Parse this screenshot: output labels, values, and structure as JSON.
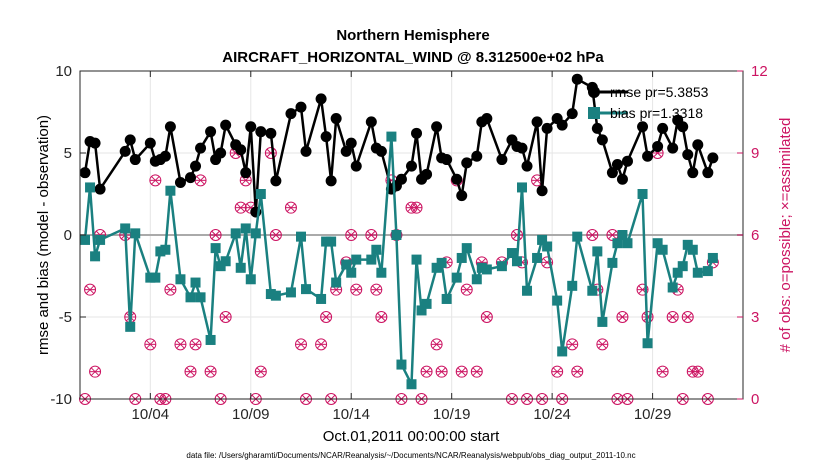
{
  "chart_data": {
    "type": "line",
    "title": "Northern Hemisphere",
    "subtitle": "AIRCRAFT_HORIZONTAL_WIND @ 8.312500e+02 hPa",
    "xlabel": "Oct.01,2011 00:00:00 start",
    "ylabel": "rmse and bias (model - observation)",
    "y2label": "# of obs: o=possible; ×=assimilated",
    "footnote": "data file: /Users/gharamti/Documents/NCAR/Reanalysis/~/Documents/NCAR/Reanalysis/webpub/obs_diag_output_2011-10.nc",
    "xlim": [
      0.5,
      33.5
    ],
    "ylim": [
      -10,
      10
    ],
    "y2lim": [
      0,
      12
    ],
    "grid": true,
    "x_ticks": [
      {
        "x": 4,
        "label": "10/04"
      },
      {
        "x": 9,
        "label": "10/09"
      },
      {
        "x": 14,
        "label": "10/14"
      },
      {
        "x": 19,
        "label": "10/19"
      },
      {
        "x": 24,
        "label": "10/24"
      },
      {
        "x": 29,
        "label": "10/29"
      }
    ],
    "y_ticks": [
      -10,
      -5,
      0,
      5,
      10
    ],
    "y2_ticks": [
      0,
      3,
      6,
      9,
      12
    ],
    "legend": {
      "position": "top-right"
    },
    "colors": {
      "rmse": "#000000",
      "bias": "#1a8080",
      "obs": "#cc1462",
      "zero": "#aaaaaa",
      "grid": "#e6e6e6"
    },
    "series": [
      {
        "name": "rmse",
        "legend_label": "rmse pr=5.3853",
        "marker": "circle",
        "x": [
          0.75,
          1.0,
          1.25,
          1.5,
          2.75,
          3.0,
          3.25,
          4.0,
          4.25,
          4.5,
          4.75,
          5.0,
          5.5,
          6.0,
          6.25,
          6.5,
          7.0,
          7.25,
          7.5,
          7.75,
          8.25,
          8.5,
          8.75,
          9.0,
          9.25,
          9.5,
          10.0,
          10.25,
          11.0,
          11.5,
          11.75,
          12.5,
          12.75,
          13.0,
          13.25,
          13.75,
          14.0,
          14.25,
          15.0,
          15.25,
          15.5,
          16.0,
          16.25,
          16.5,
          17.0,
          17.25,
          17.5,
          17.75,
          18.25,
          18.5,
          18.75,
          19.25,
          19.5,
          19.75,
          20.25,
          20.5,
          20.75,
          21.5,
          22.0,
          22.25,
          22.5,
          22.75,
          23.25,
          23.5,
          23.75,
          24.25,
          24.5,
          25.0,
          25.25,
          26.0,
          26.25,
          26.5,
          27.0,
          27.25,
          27.5,
          27.75,
          28.5,
          28.75,
          29.25,
          29.5,
          30.0,
          30.25,
          30.5,
          30.75,
          31.0,
          31.25,
          31.75,
          32.0
        ],
        "values": [
          3.8,
          5.7,
          5.6,
          2.8,
          5.1,
          5.8,
          4.6,
          5.6,
          4.5,
          4.6,
          4.8,
          6.6,
          3.2,
          3.5,
          4.2,
          5.3,
          6.3,
          4.6,
          5.0,
          6.7,
          5.5,
          5.2,
          3.8,
          6.6,
          1.4,
          6.3,
          6.2,
          3.3,
          7.4,
          7.8,
          5.1,
          8.3,
          6.0,
          3.3,
          7.1,
          5.1,
          5.6,
          4.2,
          6.9,
          5.3,
          5.1,
          2.8,
          3.0,
          3.4,
          4.2,
          6.2,
          3.4,
          3.7,
          6.6,
          4.7,
          4.6,
          3.4,
          2.4,
          4.4,
          4.8,
          6.9,
          7.1,
          4.6,
          5.8,
          5.4,
          5.3,
          4.2,
          6.9,
          2.7,
          6.5,
          7.1,
          6.7,
          7.4,
          9.5,
          9.0,
          6.5,
          5.8,
          3.8,
          4.3,
          3.4,
          4.5,
          6.6,
          4.8,
          5.4,
          6.5,
          5.3,
          7.0,
          6.6,
          4.9,
          3.8,
          5.5,
          3.8,
          4.7
        ]
      },
      {
        "name": "bias",
        "legend_label": "bias pr=1.3318",
        "marker": "square",
        "x": [
          0.75,
          1.0,
          1.25,
          1.5,
          2.75,
          3.0,
          3.25,
          4.0,
          4.25,
          4.5,
          4.75,
          5.0,
          5.5,
          6.0,
          6.25,
          6.5,
          7.0,
          7.25,
          7.5,
          7.75,
          8.25,
          8.5,
          8.75,
          9.0,
          9.25,
          9.5,
          10.0,
          10.25,
          11.0,
          11.5,
          11.75,
          12.5,
          12.75,
          13.0,
          13.25,
          13.75,
          14.0,
          14.25,
          15.0,
          15.25,
          15.5,
          16.0,
          16.25,
          16.5,
          17.0,
          17.25,
          17.5,
          17.75,
          18.25,
          18.5,
          18.75,
          19.25,
          19.5,
          19.75,
          20.25,
          20.5,
          20.75,
          21.5,
          22.0,
          22.25,
          22.5,
          22.75,
          23.25,
          23.5,
          23.75,
          24.25,
          24.5,
          25.0,
          25.25,
          26.0,
          26.25,
          26.5,
          27.0,
          27.25,
          27.5,
          27.75,
          28.5,
          28.75,
          29.25,
          29.5,
          30.0,
          30.25,
          30.5,
          30.75,
          31.0,
          31.25,
          31.75,
          32.0
        ],
        "values": [
          -0.3,
          2.9,
          -1.3,
          -0.3,
          0.4,
          -5.6,
          0.1,
          -2.6,
          -2.6,
          -1.0,
          -0.9,
          2.7,
          -2.7,
          -3.8,
          -2.9,
          -3.8,
          -6.4,
          -0.8,
          -1.9,
          -1.6,
          0.1,
          -2.0,
          0.4,
          -2.7,
          0.1,
          2.5,
          -3.6,
          -3.7,
          -3.5,
          -0.1,
          -3.3,
          -3.9,
          -0.4,
          -0.4,
          -2.9,
          -1.8,
          -2.3,
          -1.5,
          -1.5,
          -0.9,
          -2.3,
          6.0,
          0.0,
          -7.9,
          -9.1,
          -1.5,
          -4.6,
          -4.2,
          -2.0,
          -1.7,
          -3.9,
          -2.6,
          -1.4,
          -0.8,
          -2.7,
          -2.0,
          -2.1,
          -1.9,
          -1.1,
          -1.6,
          2.9,
          -3.4,
          -1.4,
          -0.3,
          -0.7,
          -4.0,
          -7.1,
          -3.1,
          -0.1,
          -3.4,
          -1.0,
          -5.3,
          -1.7,
          -0.5,
          0.0,
          -0.5,
          2.5,
          -6.6,
          -0.5,
          -0.9,
          -3.2,
          -2.3,
          -1.9,
          -0.6,
          -0.9,
          -2.3,
          -2.2,
          -1.4
        ]
      }
    ],
    "obs_counts": {
      "x": [
        0.75,
        1.0,
        1.25,
        1.5,
        2.75,
        3.0,
        3.25,
        4.0,
        4.25,
        4.5,
        4.75,
        5.0,
        5.5,
        6.0,
        6.25,
        6.5,
        7.0,
        7.25,
        7.5,
        7.75,
        8.25,
        8.5,
        8.75,
        9.0,
        9.25,
        9.5,
        10.0,
        10.25,
        11.0,
        11.5,
        11.75,
        12.5,
        12.75,
        13.0,
        13.25,
        13.75,
        14.0,
        14.25,
        15.0,
        15.25,
        15.5,
        16.0,
        16.25,
        16.5,
        17.0,
        17.25,
        17.5,
        17.75,
        18.25,
        18.5,
        18.75,
        19.25,
        19.5,
        19.75,
        20.25,
        20.5,
        20.75,
        21.5,
        22.0,
        22.25,
        22.5,
        22.75,
        23.25,
        23.5,
        23.75,
        24.25,
        24.5,
        25.0,
        25.25,
        26.0,
        26.25,
        26.5,
        27.0,
        27.25,
        27.5,
        27.75,
        28.5,
        28.75,
        29.25,
        29.5,
        30.0,
        30.25,
        30.5,
        30.75,
        31.0,
        31.25,
        31.75,
        32.0
      ],
      "possible": [
        0,
        4,
        1,
        6,
        6,
        3,
        0,
        2,
        8,
        0,
        0,
        4,
        2,
        1,
        2,
        8,
        1,
        6,
        0,
        3,
        9,
        7,
        8,
        7,
        0,
        1,
        9,
        6,
        7,
        2,
        0,
        2,
        3,
        0,
        4,
        5,
        6,
        4,
        6,
        4,
        3,
        8,
        6,
        0,
        7,
        7,
        0,
        1,
        2,
        1,
        5,
        8,
        1,
        4,
        1,
        5,
        3,
        5,
        0,
        6,
        5,
        0,
        8,
        0,
        5,
        1,
        0,
        2,
        1,
        6,
        4,
        2,
        6,
        0,
        3,
        0,
        4,
        3,
        9,
        1,
        3,
        4,
        0,
        3,
        1,
        1,
        0,
        5
      ],
      "assimilated": [
        0,
        4,
        1,
        6,
        6,
        3,
        0,
        2,
        8,
        0,
        0,
        4,
        2,
        1,
        2,
        8,
        1,
        6,
        0,
        3,
        9,
        7,
        8,
        7,
        0,
        1,
        9,
        6,
        7,
        2,
        0,
        2,
        3,
        0,
        4,
        5,
        6,
        4,
        6,
        4,
        3,
        8,
        6,
        0,
        7,
        7,
        0,
        1,
        2,
        1,
        5,
        8,
        1,
        4,
        1,
        5,
        3,
        5,
        0,
        6,
        5,
        0,
        8,
        0,
        5,
        1,
        0,
        2,
        1,
        6,
        4,
        2,
        6,
        0,
        3,
        0,
        4,
        3,
        9,
        1,
        3,
        4,
        0,
        3,
        1,
        1,
        0,
        5
      ]
    }
  }
}
